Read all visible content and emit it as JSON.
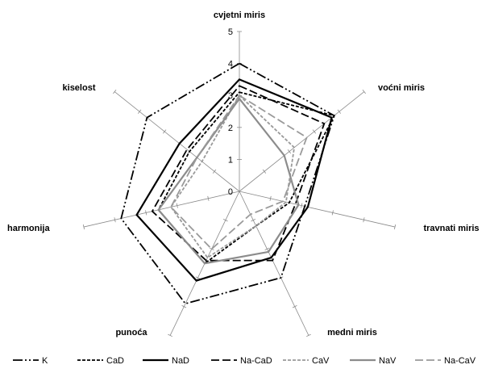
{
  "chart_data": {
    "type": "radar",
    "axes": [
      "cvjetni miris",
      "voćni miris",
      "travnati miris",
      "medni miris",
      "punoća",
      "harmonija",
      "kiselost"
    ],
    "rlim": [
      0,
      5
    ],
    "ticks": [
      "0",
      "1",
      "2",
      "3",
      "4",
      "5"
    ],
    "legend_position": "bottom",
    "series": [
      {
        "name": "K",
        "values": [
          4.0,
          3.8,
          2.1,
          3.0,
          3.9,
          3.8,
          3.7
        ],
        "color": "#000000",
        "dash": "12,3,2,3,2,3"
      },
      {
        "name": "CaD",
        "values": [
          3.1,
          3.8,
          1.6,
          1.2,
          2.5,
          2.6,
          2.0
        ],
        "color": "#000000",
        "dash": "4,2"
      },
      {
        "name": "NaD",
        "values": [
          3.5,
          3.7,
          2.2,
          2.3,
          3.1,
          3.3,
          2.4
        ],
        "color": "#000000",
        "dash": ""
      },
      {
        "name": "Na-CaD",
        "values": [
          3.3,
          3.4,
          1.8,
          2.4,
          2.4,
          2.8,
          2.1
        ],
        "color": "#000000",
        "dash": "10,4"
      },
      {
        "name": "CaV",
        "values": [
          3.0,
          2.2,
          1.5,
          1.2,
          2.3,
          2.2,
          1.5
        ],
        "color": "#9a9a9a",
        "dash": "4,2"
      },
      {
        "name": "NaV",
        "values": [
          2.9,
          1.8,
          1.9,
          2.1,
          2.5,
          2.6,
          1.7
        ],
        "color": "#8c8c8c",
        "dash": ""
      },
      {
        "name": "Na-CaV",
        "values": [
          3.0,
          2.7,
          1.4,
          0.8,
          2.0,
          2.2,
          1.7
        ],
        "color": "#9a9a9a",
        "dash": "10,4"
      }
    ]
  }
}
